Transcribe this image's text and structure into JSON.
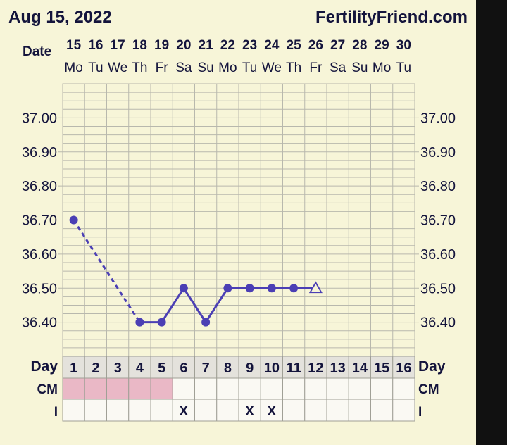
{
  "header": {
    "date_text": "Aug 15, 2022",
    "site": "FertilityFriend.com"
  },
  "labels": {
    "date": "Date",
    "day": "Day",
    "cm": "CM",
    "intercourse": "I"
  },
  "chart_data": {
    "type": "line",
    "title": "",
    "x": {
      "dates": [
        "15",
        "16",
        "17",
        "18",
        "19",
        "20",
        "21",
        "22",
        "23",
        "24",
        "25",
        "26",
        "27",
        "28",
        "29",
        "30"
      ],
      "weekdays": [
        "Mo",
        "Tu",
        "We",
        "Th",
        "Fr",
        "Sa",
        "Su",
        "Mo",
        "Tu",
        "We",
        "Th",
        "Fr",
        "Sa",
        "Su",
        "Mo",
        "Tu"
      ],
      "cycle_days": [
        "1",
        "2",
        "3",
        "4",
        "5",
        "6",
        "7",
        "8",
        "9",
        "10",
        "11",
        "12",
        "13",
        "14",
        "15",
        "16"
      ]
    },
    "y": {
      "ticks": [
        "37.00",
        "36.90",
        "36.80",
        "36.70",
        "36.60",
        "36.50",
        "36.40"
      ],
      "ylim": [
        36.3,
        37.1
      ]
    },
    "temperatures": [
      36.7,
      null,
      null,
      36.4,
      36.4,
      36.5,
      36.4,
      36.5,
      36.5,
      36.5,
      36.5,
      36.5,
      null,
      null,
      null,
      null
    ],
    "point_markers": [
      "dot",
      null,
      null,
      "dot",
      "dot",
      "dot",
      "dot",
      "dot",
      "dot",
      "dot",
      "dot",
      "open-triangle",
      null,
      null,
      null,
      null
    ],
    "dashed_segments": [
      [
        1,
        4
      ]
    ],
    "cervical_mucus": [
      "menstruation",
      "menstruation",
      "menstruation",
      "menstruation",
      "menstruation",
      "",
      "",
      "",
      "",
      "",
      "",
      "",
      "",
      "",
      "",
      ""
    ],
    "intercourse": [
      "",
      "",
      "",
      "",
      "",
      "X",
      "",
      "",
      "X",
      "X",
      "",
      "",
      "",
      "",
      "",
      ""
    ],
    "colors": {
      "line": "#4b3fb4",
      "menstruation": "#eab8c6",
      "grid": "#b8b8ad",
      "background": "#f7f5d8",
      "text": "#14143c"
    }
  }
}
